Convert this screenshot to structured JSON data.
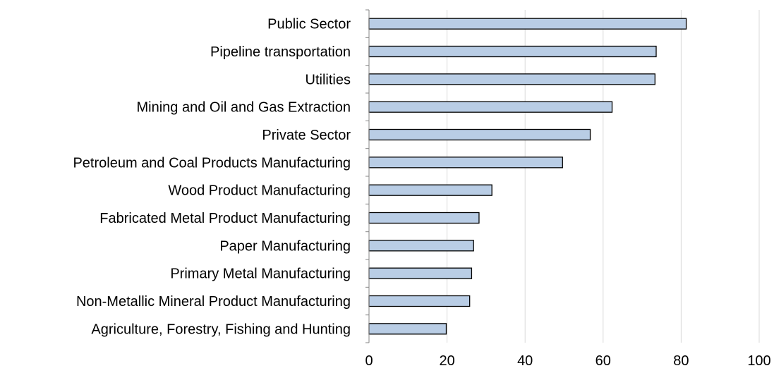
{
  "chart_data": {
    "type": "bar",
    "orientation": "horizontal",
    "title": "",
    "xlabel": "",
    "ylabel": "",
    "categories": [
      "Public Sector",
      "Pipeline transportation",
      "Utilities",
      "Mining and Oil and Gas Extraction",
      "Private Sector",
      "Petroleum and Coal Products Manufacturing",
      "Wood Product Manufacturing",
      "Fabricated Metal Product Manufacturing",
      "Paper Manufacturing",
      "Primary Metal Manufacturing",
      "Non-Metallic Mineral Product Manufacturing",
      "Agriculture, Forestry, Fishing and Hunting"
    ],
    "values": [
      81.3,
      73.6,
      73.3,
      62.3,
      56.7,
      49.6,
      31.5,
      28.2,
      26.8,
      26.3,
      25.8,
      19.8
    ],
    "xlim": [
      0,
      100
    ],
    "xticks": [
      "0",
      "20",
      "40",
      "60",
      "80",
      "100"
    ],
    "grid": "vertical",
    "legend": "none",
    "colors": {
      "bar_fill": "#b9cde5",
      "bar_stroke": "#000000",
      "grid": "#d9d9d9",
      "axis": "#868686"
    }
  }
}
